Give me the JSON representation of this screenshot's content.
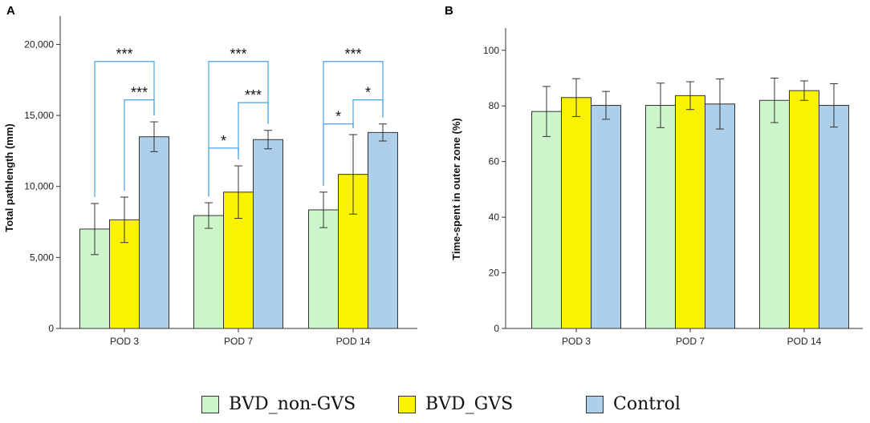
{
  "chart_data": [
    {
      "panel": "A",
      "type": "bar",
      "categories": [
        "POD 3",
        "POD 7",
        "POD 14"
      ],
      "ylabel": "Total pathlength (mm)",
      "ylim": [
        0,
        22000
      ],
      "yticks": [
        0,
        5000,
        10000,
        15000,
        20000
      ],
      "ytick_labels": [
        "0",
        "5,000",
        "10,000",
        "15,000",
        "20,000"
      ],
      "series": [
        {
          "name": "BVD_non-GVS",
          "color": "#ccf5cc",
          "values": [
            7000,
            7950,
            8350
          ],
          "errors": [
            1800,
            900,
            1250
          ]
        },
        {
          "name": "BVD_GVS",
          "color": "#f9f200",
          "values": [
            7650,
            9600,
            10850
          ],
          "errors": [
            1600,
            1850,
            2800
          ]
        },
        {
          "name": "Control",
          "color": "#aecfea",
          "values": [
            13500,
            13300,
            13800
          ],
          "errors": [
            1050,
            650,
            600
          ]
        }
      ],
      "significance": [
        {
          "category": 0,
          "from": 0,
          "to": 2,
          "label": "***",
          "level": 18800
        },
        {
          "category": 0,
          "from": 1,
          "to": 2,
          "label": "***",
          "level": 16100
        },
        {
          "category": 1,
          "from": 0,
          "to": 2,
          "label": "***",
          "level": 18800
        },
        {
          "category": 1,
          "from": 1,
          "to": 2,
          "label": "***",
          "level": 15900
        },
        {
          "category": 1,
          "from": 0,
          "to": 1,
          "label": "*",
          "level": 12700
        },
        {
          "category": 2,
          "from": 0,
          "to": 2,
          "label": "***",
          "level": 18800
        },
        {
          "category": 2,
          "from": 1,
          "to": 2,
          "label": "*",
          "level": 16100
        },
        {
          "category": 2,
          "from": 0,
          "to": 1,
          "label": "*",
          "level": 14400
        }
      ]
    },
    {
      "panel": "B",
      "type": "bar",
      "categories": [
        "POD 3",
        "POD 7",
        "POD 14"
      ],
      "ylabel": "Time-spent in outer zone (%)",
      "ylim": [
        0,
        108
      ],
      "yticks": [
        0,
        20,
        40,
        60,
        80,
        100
      ],
      "ytick_labels": [
        "0",
        "20",
        "40",
        "60",
        "80",
        "100"
      ],
      "series": [
        {
          "name": "BVD_non-GVS",
          "color": "#ccf5cc",
          "values": [
            78,
            80.2,
            82
          ],
          "errors": [
            9,
            8,
            8
          ]
        },
        {
          "name": "BVD_GVS",
          "color": "#f9f200",
          "values": [
            83,
            83.7,
            85.5
          ],
          "errors": [
            6.8,
            5,
            3.5
          ]
        },
        {
          "name": "Control",
          "color": "#aecfea",
          "values": [
            80.2,
            80.7,
            80.2
          ],
          "errors": [
            5,
            9,
            7.8
          ]
        }
      ]
    }
  ],
  "legend": [
    {
      "label": "BVD_non-GVS",
      "color": "#ccf5cc"
    },
    {
      "label": "BVD_GVS",
      "color": "#f9f200"
    },
    {
      "label": "Control",
      "color": "#aecfea"
    }
  ]
}
